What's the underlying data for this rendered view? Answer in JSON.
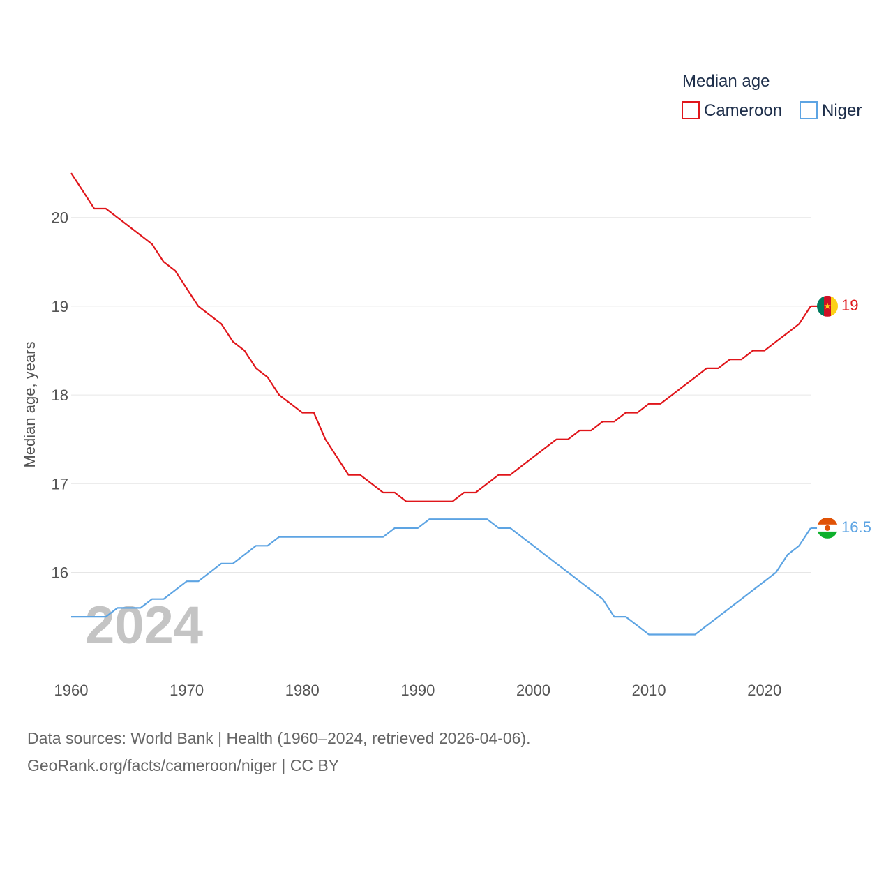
{
  "chart_data": {
    "type": "line",
    "ylabel": "Median age, years",
    "xlabel": "",
    "xlim": [
      1960,
      2024
    ],
    "ylim": [
      15,
      20.5
    ],
    "x_ticks": [
      1960,
      1970,
      1980,
      1990,
      2000,
      2010,
      2020
    ],
    "y_ticks": [
      16,
      17,
      18,
      19,
      20
    ],
    "legend_title": "Median age",
    "year_label": "2024",
    "x": [
      1960,
      1961,
      1962,
      1963,
      1964,
      1965,
      1966,
      1967,
      1968,
      1969,
      1970,
      1971,
      1972,
      1973,
      1974,
      1975,
      1976,
      1977,
      1978,
      1979,
      1980,
      1981,
      1982,
      1983,
      1984,
      1985,
      1986,
      1987,
      1988,
      1989,
      1990,
      1991,
      1992,
      1993,
      1994,
      1995,
      1996,
      1997,
      1998,
      1999,
      2000,
      2001,
      2002,
      2003,
      2004,
      2005,
      2006,
      2007,
      2008,
      2009,
      2010,
      2011,
      2012,
      2013,
      2014,
      2015,
      2016,
      2017,
      2018,
      2019,
      2020,
      2021,
      2022,
      2023,
      2024
    ],
    "series": [
      {
        "name": "Cameroon",
        "color": "#e0161b",
        "end_label": "19",
        "flag": "cameroon-flag-icon",
        "values": [
          20.5,
          20.3,
          20.1,
          20.1,
          20.0,
          19.9,
          19.8,
          19.7,
          19.5,
          19.4,
          19.2,
          19.0,
          18.9,
          18.8,
          18.6,
          18.5,
          18.3,
          18.2,
          18.0,
          17.9,
          17.8,
          17.8,
          17.5,
          17.3,
          17.1,
          17.1,
          17.0,
          16.9,
          16.9,
          16.8,
          16.8,
          16.8,
          16.8,
          16.8,
          16.9,
          16.9,
          17.0,
          17.1,
          17.1,
          17.2,
          17.3,
          17.4,
          17.5,
          17.5,
          17.6,
          17.6,
          17.7,
          17.7,
          17.8,
          17.8,
          17.9,
          17.9,
          18.0,
          18.1,
          18.2,
          18.3,
          18.3,
          18.4,
          18.4,
          18.5,
          18.5,
          18.6,
          18.7,
          18.8,
          19.0
        ]
      },
      {
        "name": "Niger",
        "color": "#5da4e3",
        "end_label": "16.5",
        "flag": "niger-flag-icon",
        "values": [
          15.5,
          15.5,
          15.5,
          15.5,
          15.6,
          15.6,
          15.6,
          15.7,
          15.7,
          15.8,
          15.9,
          15.9,
          16.0,
          16.1,
          16.1,
          16.2,
          16.3,
          16.3,
          16.4,
          16.4,
          16.4,
          16.4,
          16.4,
          16.4,
          16.4,
          16.4,
          16.4,
          16.4,
          16.5,
          16.5,
          16.5,
          16.6,
          16.6,
          16.6,
          16.6,
          16.6,
          16.6,
          16.5,
          16.5,
          16.4,
          16.3,
          16.2,
          16.1,
          16.0,
          15.9,
          15.8,
          15.7,
          15.5,
          15.5,
          15.4,
          15.3,
          15.3,
          15.3,
          15.3,
          15.3,
          15.4,
          15.5,
          15.6,
          15.7,
          15.8,
          15.9,
          16.0,
          16.2,
          16.3,
          16.5
        ]
      }
    ]
  },
  "footer": {
    "source_line_1": "Data sources: World Bank | Health (1960–2024, retrieved 2026-04-06).",
    "source_line_2": "GeoRank.org/facts/cameroon/niger | CC BY"
  }
}
